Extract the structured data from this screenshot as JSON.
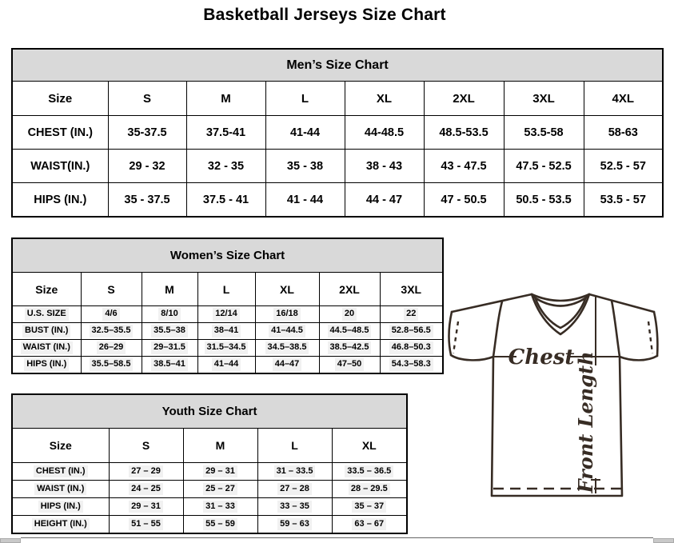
{
  "page": {
    "title": "Basketball Jerseys Size Chart"
  },
  "tables": {
    "men": {
      "title": "Men’s Size Chart",
      "columns": [
        "Size",
        "S",
        "M",
        "L",
        "XL",
        "2XL",
        "3XL",
        "4XL"
      ],
      "rows": [
        {
          "label": "CHEST (IN.)",
          "values": [
            "35-37.5",
            "37.5-41",
            "41-44",
            "44-48.5",
            "48.5-53.5",
            "53.5-58",
            "58-63"
          ]
        },
        {
          "label": "WAIST(IN.)",
          "values": [
            "29 - 32",
            "32 - 35",
            "35 - 38",
            "38 - 43",
            "43 - 47.5",
            "47.5 - 52.5",
            "52.5 - 57"
          ]
        },
        {
          "label": "HIPS (IN.)",
          "values": [
            "35 - 37.5",
            "37.5 - 41",
            "41 - 44",
            "44 - 47",
            "47 - 50.5",
            "50.5 - 53.5",
            "53.5 - 57"
          ]
        }
      ]
    },
    "women": {
      "title": "Women’s Size Chart",
      "columns": [
        "Size",
        "S",
        "M",
        "L",
        "XL",
        "2XL",
        "3XL"
      ],
      "rows": [
        {
          "label": "U.S. SIZE",
          "values": [
            "4/6",
            "8/10",
            "12/14",
            "16/18",
            "20",
            "22"
          ]
        },
        {
          "label": "BUST (IN.)",
          "values": [
            "32.5–35.5",
            "35.5–38",
            "38–41",
            "41–44.5",
            "44.5–48.5",
            "52.8–56.5"
          ]
        },
        {
          "label": "WAIST (IN.)",
          "values": [
            "26–29",
            "29–31.5",
            "31.5–34.5",
            "34.5–38.5",
            "38.5–42.5",
            "46.8–50.3"
          ]
        },
        {
          "label": "HIPS (IN.)",
          "values": [
            "35.5–58.5",
            "38.5–41",
            "41–44",
            "44–47",
            "47–50",
            "54.3–58.3"
          ]
        }
      ]
    },
    "youth": {
      "title": "Youth Size Chart",
      "columns": [
        "Size",
        "S",
        "M",
        "L",
        "XL"
      ],
      "rows": [
        {
          "label": "CHEST (IN.)",
          "values": [
            "27 – 29",
            "29 – 31",
            "31 – 33.5",
            "33.5 – 36.5"
          ]
        },
        {
          "label": "WAIST (IN.)",
          "values": [
            "24 – 25",
            "25 – 27",
            "27 – 28",
            "28 – 29.5"
          ]
        },
        {
          "label": "HIPS (IN.)",
          "values": [
            "29 – 31",
            "31 – 33",
            "33 – 35",
            "35 – 37"
          ]
        },
        {
          "label": "HEIGHT (IN.)",
          "values": [
            "51 – 55",
            "55 – 59",
            "59 – 63",
            "63 – 67"
          ]
        }
      ]
    }
  },
  "diagram": {
    "chest_label": "Chest",
    "front_length_label": "Front Length"
  },
  "colors": {
    "table_header_bg": "#d9d9d9",
    "table_border": "#000000",
    "diagram_stroke": "#372c24",
    "highlight_bg": "#f1f1f1"
  }
}
